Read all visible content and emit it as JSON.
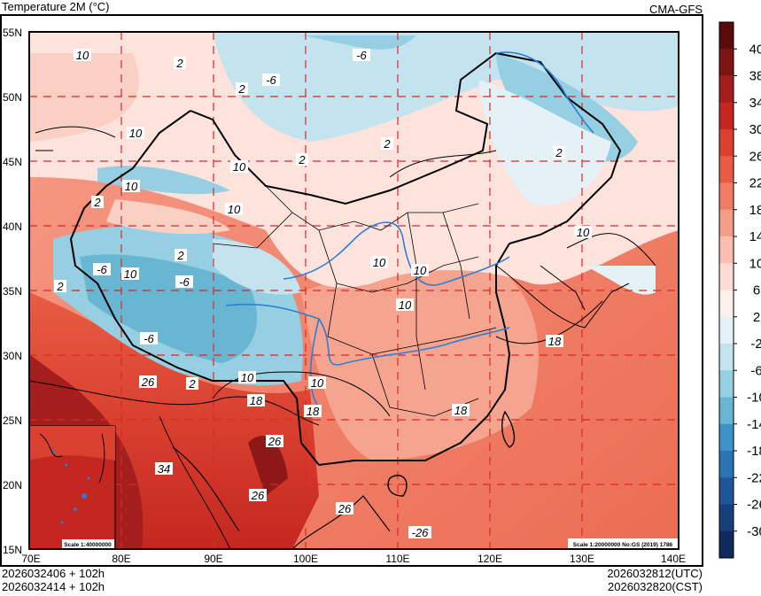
{
  "header": {
    "title": "Temperature  2M (°C)",
    "model": "CMA-GFS"
  },
  "footer": {
    "left_line1": "2026032406 + 102h",
    "left_line2": "2026032414 + 102h",
    "right_line1": "2026032812(UTC)",
    "right_line2": "2026032820(CST)"
  },
  "map": {
    "lat_labels": [
      "55N",
      "50N",
      "45N",
      "40N",
      "35N",
      "30N",
      "25N",
      "20N",
      "15N"
    ],
    "lon_labels": [
      "70E",
      "80E",
      "90E",
      "100E",
      "110E",
      "120E",
      "130E",
      "140E"
    ],
    "inset_scale": "Scale 1:40000000",
    "main_scale": "Scale 1:20000000 No:GS (2019) 1786",
    "contour_labels": [
      "10",
      "2",
      "-6",
      "-6",
      "2",
      "10",
      "2",
      "10",
      "2",
      "10",
      "2",
      "10",
      "10",
      "2",
      "-6",
      "2",
      "10",
      "-6",
      "10",
      "10",
      "2",
      "-6",
      "26",
      "2",
      "10",
      "18",
      "10",
      "18",
      "10",
      "18",
      "26",
      "34",
      "26",
      "26",
      "-26",
      "18"
    ]
  },
  "colorbar": {
    "labels": [
      "40",
      "38",
      "34",
      "30",
      "26",
      "22",
      "18",
      "14",
      "10",
      "6",
      "2",
      "-2",
      "-6",
      "-10",
      "-14",
      "-18",
      "-22",
      "-26",
      "-30"
    ],
    "colors": [
      "#5a0b0b",
      "#7e1414",
      "#a51e1e",
      "#c4271f",
      "#d9402f",
      "#e85c45",
      "#f07c65",
      "#f69d89",
      "#fabdb0",
      "#fddcd4",
      "#fdf0ec",
      "#e4f2f8",
      "#c3e3ef",
      "#95cfe1",
      "#68b6d2",
      "#3d93c7",
      "#2a73b5",
      "#1f569b",
      "#163f7c",
      "#0f2a5a"
    ]
  }
}
